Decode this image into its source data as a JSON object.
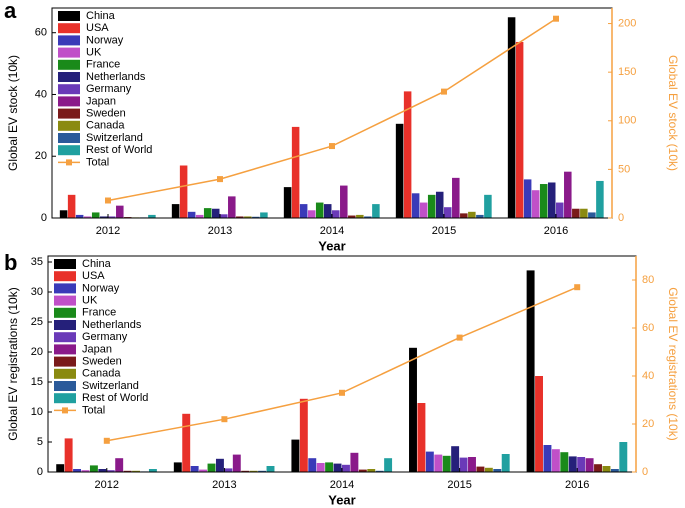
{
  "chart_data": [
    {
      "type": "bar",
      "label": "a",
      "xlabel": "Year",
      "ylabel": "Global EV stock (10k)",
      "y2label": "Global EV stock (10k)",
      "categories": [
        "2012",
        "2013",
        "2014",
        "2015",
        "2016"
      ],
      "ylim": [
        0,
        68
      ],
      "yticks": [
        0,
        20,
        40,
        60
      ],
      "y2lim": [
        0,
        216
      ],
      "y2ticks": [
        0,
        50,
        100,
        150,
        200
      ],
      "legend": "upper left",
      "series": [
        {
          "name": "China",
          "color": "#000000",
          "values": [
            2.5,
            4.5,
            10,
            30.5,
            65
          ]
        },
        {
          "name": "USA",
          "color": "#e8312a",
          "values": [
            7.5,
            17,
            29.5,
            41,
            57
          ]
        },
        {
          "name": "Norway",
          "color": "#3a3ab8",
          "values": [
            1,
            2,
            4.5,
            8,
            12.5
          ]
        },
        {
          "name": "UK",
          "color": "#c050c8",
          "values": [
            0.5,
            1,
            2.5,
            5,
            9
          ]
        },
        {
          "name": "France",
          "color": "#1a8a1a",
          "values": [
            1.8,
            3.2,
            5,
            7.5,
            11
          ]
        },
        {
          "name": "Netherlands",
          "color": "#25207a",
          "values": [
            0.5,
            3,
            4.5,
            8.5,
            11.5
          ]
        },
        {
          "name": "Germany",
          "color": "#6a3ab8",
          "values": [
            0.5,
            1.2,
            2.5,
            3.5,
            5
          ]
        },
        {
          "name": "Japan",
          "color": "#8a1a8a",
          "values": [
            4,
            7,
            10.5,
            13,
            15
          ]
        },
        {
          "name": "Sweden",
          "color": "#7a1a1a",
          "values": [
            0.3,
            0.5,
            0.8,
            1.5,
            3
          ]
        },
        {
          "name": "Canada",
          "color": "#8a8a10",
          "values": [
            0.2,
            0.5,
            1,
            2,
            3
          ]
        },
        {
          "name": "Switzerland",
          "color": "#2a5a9a",
          "values": [
            0.2,
            0.4,
            0.5,
            1,
            1.8
          ]
        },
        {
          "name": "Rest of World",
          "color": "#20a0a0",
          "values": [
            1,
            1.8,
            4.5,
            7.5,
            12
          ]
        },
        {
          "name": "Total",
          "color": "#f5a040",
          "axis": "y2",
          "values": [
            18,
            40,
            74,
            130,
            205
          ]
        }
      ]
    },
    {
      "type": "bar",
      "label": "b",
      "xlabel": "Year",
      "ylabel": "Global EV registrations (10k)",
      "y2label": "Global EV registrations (10k)",
      "categories": [
        "2012",
        "2013",
        "2014",
        "2015",
        "2016"
      ],
      "ylim": [
        0,
        36
      ],
      "yticks": [
        0,
        5,
        10,
        15,
        20,
        25,
        30,
        35
      ],
      "y2lim": [
        0,
        90
      ],
      "y2ticks": [
        0,
        20,
        40,
        60,
        80
      ],
      "legend": "upper left",
      "series": [
        {
          "name": "China",
          "color": "#000000",
          "values": [
            1.3,
            1.6,
            5.4,
            20.7,
            33.6
          ]
        },
        {
          "name": "USA",
          "color": "#e8312a",
          "values": [
            5.6,
            9.7,
            12.2,
            11.5,
            16
          ]
        },
        {
          "name": "Norway",
          "color": "#3a3ab8",
          "values": [
            0.5,
            1,
            2.3,
            3.4,
            4.5
          ]
        },
        {
          "name": "UK",
          "color": "#c050c8",
          "values": [
            0.3,
            0.4,
            1.5,
            2.9,
            3.8
          ]
        },
        {
          "name": "France",
          "color": "#1a8a1a",
          "values": [
            1.1,
            1.4,
            1.6,
            2.7,
            3.3
          ]
        },
        {
          "name": "Netherlands",
          "color": "#25207a",
          "values": [
            0.5,
            2.2,
            1.4,
            4.3,
            2.6
          ]
        },
        {
          "name": "Germany",
          "color": "#6a3ab8",
          "values": [
            0.3,
            0.6,
            1.2,
            2.4,
            2.5
          ]
        },
        {
          "name": "Japan",
          "color": "#8a1a8a",
          "values": [
            2.3,
            2.9,
            3.2,
            2.5,
            2.3
          ]
        },
        {
          "name": "Sweden",
          "color": "#7a1a1a",
          "values": [
            0.2,
            0.2,
            0.4,
            0.9,
            1.3
          ]
        },
        {
          "name": "Canada",
          "color": "#8a8a10",
          "values": [
            0.2,
            0.2,
            0.5,
            0.7,
            1
          ]
        },
        {
          "name": "Switzerland",
          "color": "#2a5a9a",
          "values": [
            0.1,
            0.2,
            0.2,
            0.5,
            0.5
          ]
        },
        {
          "name": "Rest of World",
          "color": "#20a0a0",
          "values": [
            0.5,
            1,
            2.3,
            3,
            5
          ]
        },
        {
          "name": "Total",
          "color": "#f5a040",
          "axis": "y2",
          "values": [
            13,
            22,
            33,
            56,
            77
          ]
        }
      ]
    }
  ]
}
